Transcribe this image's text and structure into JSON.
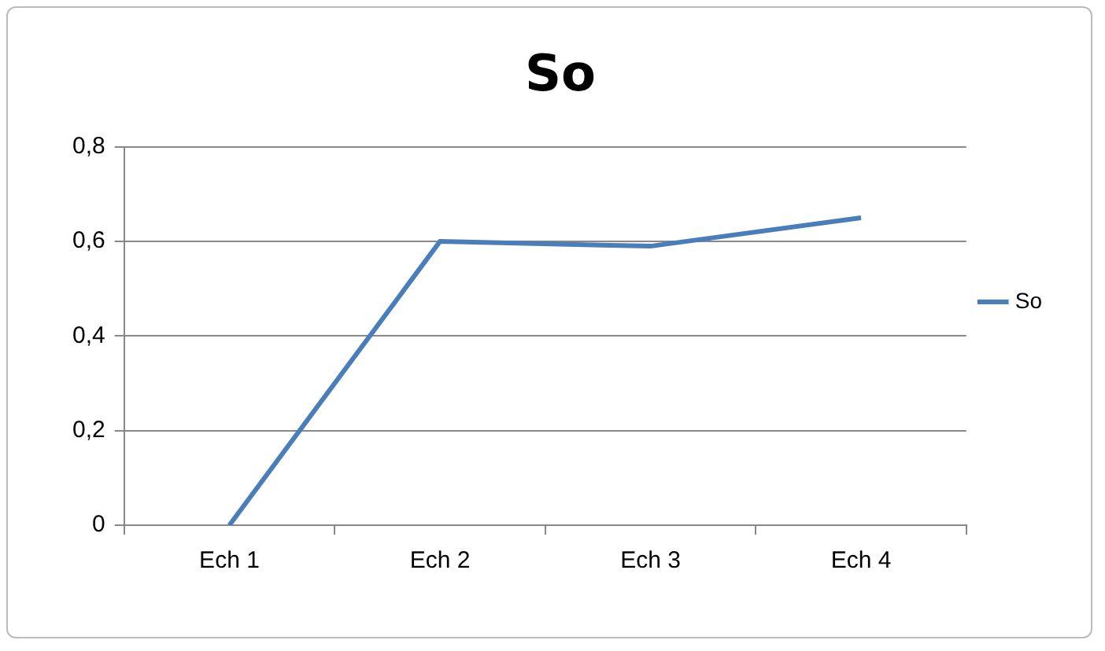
{
  "chart_data": {
    "type": "line",
    "title": "So",
    "categories": [
      "Ech 1",
      "Ech 2",
      "Ech 3",
      "Ech 4"
    ],
    "series": [
      {
        "name": "So",
        "color": "#4a7ebb",
        "values": [
          0,
          0.6,
          0.59,
          0.65
        ]
      }
    ],
    "ylim": [
      0,
      0.8
    ],
    "yticks": [
      {
        "value": 0,
        "label": "0"
      },
      {
        "value": 0.2,
        "label": "0,2"
      },
      {
        "value": 0.4,
        "label": "0,4"
      },
      {
        "value": 0.6,
        "label": "0,6"
      },
      {
        "value": 0.8,
        "label": "0,8"
      }
    ],
    "grid": "y",
    "legend": "right",
    "marker": "none",
    "line_style": "solid"
  }
}
